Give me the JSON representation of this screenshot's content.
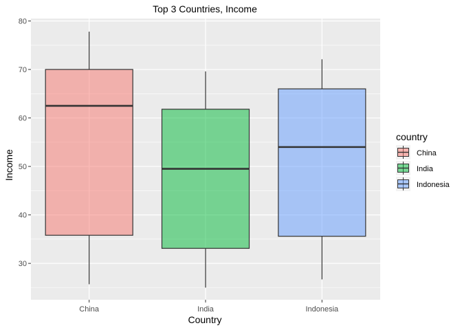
{
  "chart_data": {
    "type": "boxplot",
    "title": "Top 3 Countries, Income",
    "xlabel": "Country",
    "ylabel": "Income",
    "categories": [
      "China",
      "India",
      "Indonesia"
    ],
    "ylim": [
      22.5,
      80.5
    ],
    "yticks": [
      30,
      40,
      50,
      60,
      70,
      80
    ],
    "ytick_labels": [
      "30",
      "40",
      "50",
      "60",
      "70",
      "80"
    ],
    "grid": true,
    "legend": {
      "title": "country",
      "position": "right",
      "entries": [
        "China",
        "India",
        "Indonesia"
      ]
    },
    "series": [
      {
        "name": "China",
        "color": "#F8766D",
        "whisker_low": 25.7,
        "q1": 35.8,
        "median": 62.5,
        "q3": 70.0,
        "whisker_high": 77.8
      },
      {
        "name": "India",
        "color": "#00BA38",
        "whisker_low": 25.0,
        "q1": 33.1,
        "median": 49.5,
        "q3": 61.8,
        "whisker_high": 69.6
      },
      {
        "name": "Indonesia",
        "color": "#619CFF",
        "whisker_low": 26.7,
        "q1": 35.6,
        "median": 54.0,
        "q3": 66.0,
        "whisker_high": 72.1
      }
    ],
    "panel_background": "#EBEBEB",
    "grid_color": "#FFFFFF",
    "box_opacity": 0.5
  }
}
